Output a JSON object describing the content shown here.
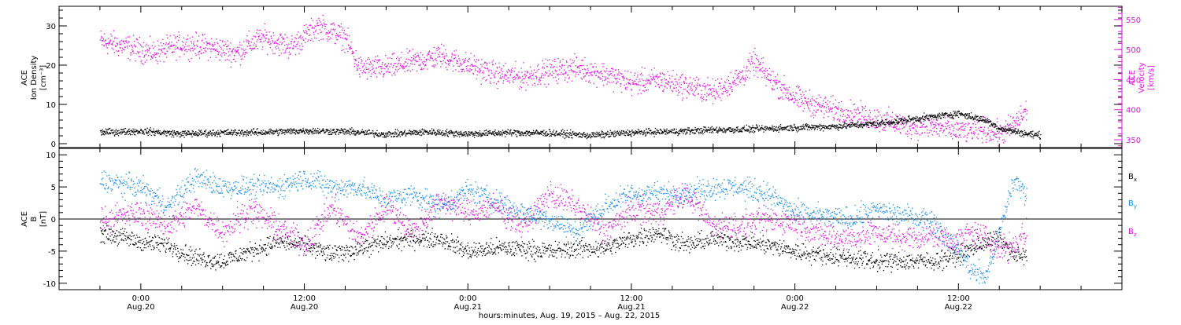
{
  "colors": {
    "black": "#000000",
    "magenta": "#d814d8",
    "blue": "#1a8ee0"
  },
  "chart_data": [
    {
      "type": "scatter",
      "panel": "top",
      "ylabel_left": [
        "ACE",
        "Ion Density",
        "[cm⁻³]"
      ],
      "ylabel_right": [
        "ACE",
        "Velocity",
        "[km/s]"
      ],
      "ylim_left": [
        -1,
        35
      ],
      "ylim_right": [
        337,
        572
      ],
      "yticks_left": [
        0,
        10,
        20,
        30
      ],
      "yticks_right": [
        350,
        400,
        450,
        500,
        550
      ],
      "grid": false,
      "series": [
        {
          "color": "#000000",
          "axis": "left",
          "points": [
            [
              -3,
              3.0
            ],
            [
              0,
              3.3
            ],
            [
              3,
              2.6
            ],
            [
              6,
              2.9
            ],
            [
              9,
              3.0
            ],
            [
              12,
              3.4
            ],
            [
              15,
              3.2
            ],
            [
              18,
              2.5
            ],
            [
              21,
              3.1
            ],
            [
              24,
              2.6
            ],
            [
              27,
              2.9
            ],
            [
              30,
              2.8
            ],
            [
              33,
              2.2
            ],
            [
              36,
              2.9
            ],
            [
              39,
              3.2
            ],
            [
              42,
              3.6
            ],
            [
              45,
              3.8
            ],
            [
              48,
              4.2
            ],
            [
              51,
              4.5
            ],
            [
              54,
              5.2
            ],
            [
              57,
              6.5
            ],
            [
              60,
              7.8
            ],
            [
              62,
              6.0
            ],
            [
              63,
              4.0
            ],
            [
              65,
              2.6
            ],
            [
              66,
              2.2
            ]
          ]
        },
        {
          "color": "#d814d8",
          "axis": "right",
          "points": [
            [
              -3,
              515
            ],
            [
              -1,
              505
            ],
            [
              1,
              495
            ],
            [
              3,
              510
            ],
            [
              5,
              505
            ],
            [
              7,
              495
            ],
            [
              8,
              510
            ],
            [
              9,
              520
            ],
            [
              11,
              505
            ],
            [
              13,
              540
            ],
            [
              15,
              520
            ],
            [
              16,
              470
            ],
            [
              18,
              470
            ],
            [
              20,
              480
            ],
            [
              22,
              490
            ],
            [
              24,
              475
            ],
            [
              26,
              460
            ],
            [
              28,
              455
            ],
            [
              30,
              465
            ],
            [
              32,
              470
            ],
            [
              34,
              460
            ],
            [
              36,
              445
            ],
            [
              38,
              450
            ],
            [
              40,
              440
            ],
            [
              42,
              430
            ],
            [
              44,
              455
            ],
            [
              45,
              480
            ],
            [
              46,
              455
            ],
            [
              48,
              420
            ],
            [
              50,
              405
            ],
            [
              52,
              395
            ],
            [
              54,
              385
            ],
            [
              56,
              375
            ],
            [
              58,
              373
            ],
            [
              60,
              365
            ],
            [
              62,
              368
            ],
            [
              63,
              360
            ],
            [
              64,
              375
            ],
            [
              65,
              400
            ]
          ]
        }
      ]
    },
    {
      "type": "scatter",
      "panel": "bottom",
      "ylabel_left": [
        "ACE",
        "B",
        "[nT]"
      ],
      "ylim": [
        -11,
        11
      ],
      "yticks": [
        -10,
        -5,
        0,
        5,
        10
      ],
      "zero_line": true,
      "grid": false,
      "legend_position": "right",
      "series": [
        {
          "name": "Bx",
          "color": "#000000",
          "points": [
            [
              -3,
              -2.0
            ],
            [
              0,
              -3.5
            ],
            [
              2,
              -4.0
            ],
            [
              4,
              -6.0
            ],
            [
              6,
              -6.5
            ],
            [
              8,
              -5.0
            ],
            [
              10,
              -3.5
            ],
            [
              12,
              -4.0
            ],
            [
              14,
              -5.5
            ],
            [
              16,
              -4.5
            ],
            [
              18,
              -3.5
            ],
            [
              20,
              -3.0
            ],
            [
              22,
              -3.0
            ],
            [
              24,
              -5.0
            ],
            [
              26,
              -4.5
            ],
            [
              28,
              -4.5
            ],
            [
              30,
              -5.0
            ],
            [
              32,
              -4.5
            ],
            [
              34,
              -4.5
            ],
            [
              36,
              -3.0
            ],
            [
              38,
              -2.0
            ],
            [
              40,
              -4.0
            ],
            [
              42,
              -3.0
            ],
            [
              44,
              -3.5
            ],
            [
              46,
              -4.0
            ],
            [
              48,
              -5.0
            ],
            [
              50,
              -5.5
            ],
            [
              52,
              -6.0
            ],
            [
              54,
              -6.5
            ],
            [
              56,
              -6.5
            ],
            [
              58,
              -6.5
            ],
            [
              60,
              -5.5
            ],
            [
              62,
              -3.5
            ],
            [
              63,
              -3.0
            ],
            [
              64,
              -5.5
            ],
            [
              65,
              -6.0
            ]
          ]
        },
        {
          "name": "By",
          "color": "#1a8ee0",
          "points": [
            [
              -3,
              6.0
            ],
            [
              0,
              5.0
            ],
            [
              2,
              2.0
            ],
            [
              4,
              6.5
            ],
            [
              6,
              5.0
            ],
            [
              8,
              5.0
            ],
            [
              10,
              5.0
            ],
            [
              12,
              6.5
            ],
            [
              14,
              5.0
            ],
            [
              16,
              5.0
            ],
            [
              18,
              3.0
            ],
            [
              20,
              4.0
            ],
            [
              22,
              2.0
            ],
            [
              24,
              4.5
            ],
            [
              26,
              3.0
            ],
            [
              28,
              1.0
            ],
            [
              30,
              0.0
            ],
            [
              32,
              -2.0
            ],
            [
              34,
              2.0
            ],
            [
              36,
              4.0
            ],
            [
              38,
              4.0
            ],
            [
              40,
              4.0
            ],
            [
              42,
              5.0
            ],
            [
              44,
              5.0
            ],
            [
              46,
              4.0
            ],
            [
              48,
              1.0
            ],
            [
              50,
              0.5
            ],
            [
              52,
              0.0
            ],
            [
              54,
              1.5
            ],
            [
              56,
              0.5
            ],
            [
              58,
              0.0
            ],
            [
              60,
              -5.0
            ],
            [
              61,
              -8.0
            ],
            [
              62,
              -9.0
            ],
            [
              63,
              -2.0
            ],
            [
              64,
              6.0
            ],
            [
              65,
              4.0
            ]
          ]
        },
        {
          "name": "Bz",
          "color": "#d814d8",
          "points": [
            [
              -3,
              0.0
            ],
            [
              0,
              1.0
            ],
            [
              2,
              -1.0
            ],
            [
              4,
              2.0
            ],
            [
              6,
              -2.0
            ],
            [
              8,
              1.5
            ],
            [
              10,
              -1.0
            ],
            [
              12,
              -4.0
            ],
            [
              14,
              2.0
            ],
            [
              16,
              -3.0
            ],
            [
              18,
              2.0
            ],
            [
              20,
              -2.0
            ],
            [
              22,
              3.0
            ],
            [
              24,
              1.0
            ],
            [
              26,
              2.0
            ],
            [
              28,
              -1.0
            ],
            [
              30,
              4.0
            ],
            [
              32,
              2.0
            ],
            [
              34,
              -2.0
            ],
            [
              36,
              1.5
            ],
            [
              38,
              1.0
            ],
            [
              40,
              4.0
            ],
            [
              42,
              -1.0
            ],
            [
              44,
              -1.0
            ],
            [
              46,
              0.0
            ],
            [
              48,
              -0.5
            ],
            [
              50,
              -2.5
            ],
            [
              52,
              -3.0
            ],
            [
              54,
              -2.0
            ],
            [
              56,
              -3.0
            ],
            [
              58,
              -2.5
            ],
            [
              60,
              -3.5
            ],
            [
              61,
              -2.0
            ],
            [
              62,
              -3.0
            ],
            [
              63,
              -4.5
            ],
            [
              64,
              -4.0
            ],
            [
              65,
              -2.0
            ]
          ]
        }
      ]
    }
  ],
  "x_axis": {
    "xlim": [
      -6,
      72
    ],
    "ticks": [
      {
        "x": 0,
        "label1": "0:00",
        "label2": "Aug.20"
      },
      {
        "x": 12,
        "label1": "12:00",
        "label2": "Aug.20"
      },
      {
        "x": 24,
        "label1": "0:00",
        "label2": "Aug.21"
      },
      {
        "x": 36,
        "label1": "12:00",
        "label2": "Aug.21"
      },
      {
        "x": 48,
        "label1": "0:00",
        "label2": "Aug.22"
      },
      {
        "x": 60,
        "label1": "12:00",
        "label2": "Aug.22"
      }
    ],
    "title": "hours:minutes, Aug. 19, 2015 – Aug. 22, 2015"
  },
  "legend": [
    {
      "main": "B",
      "sub": "x",
      "color": "#000000"
    },
    {
      "main": "B",
      "sub": "y",
      "color": "#1a8ee0"
    },
    {
      "main": "B",
      "sub": "z",
      "color": "#d814d8"
    }
  ]
}
